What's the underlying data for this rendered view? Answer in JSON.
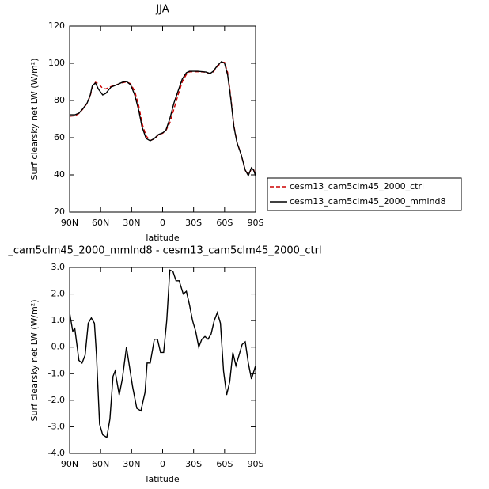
{
  "chart_data": [
    {
      "type": "line",
      "title": "JJA",
      "x_label": "latitude",
      "y_label": "Surf clearsky net LW (W/m²)",
      "x": [
        90,
        85,
        81,
        77,
        73,
        70,
        68,
        65,
        62,
        58,
        55,
        50,
        44,
        39,
        35,
        31,
        27,
        23,
        20,
        16,
        12,
        8,
        4,
        0,
        -3,
        -7,
        -11,
        -15,
        -19,
        -23,
        -26,
        -34,
        -42,
        -46,
        -49,
        -53,
        -57,
        -60,
        -63,
        -66,
        -69,
        -72,
        -76,
        -80,
        -83,
        -86,
        -88,
        -90
      ],
      "series": [
        {
          "name": "cesm13_cam5clm45_2000_ctrl",
          "color": "#cc0000",
          "dash": true,
          "values": [
            71.5,
            71.8,
            73,
            75.5,
            78.5,
            82.5,
            87.5,
            89.8,
            89,
            86.5,
            86.2,
            87.5,
            88.6,
            89.5,
            90,
            89,
            85,
            77,
            68,
            61,
            58.5,
            59.3,
            61.5,
            62.4,
            63.6,
            68,
            75.5,
            83,
            90,
            94,
            95.4,
            95.5,
            95.2,
            94.3,
            95.3,
            98.2,
            100.6,
            100.5,
            95,
            82,
            66.6,
            57.6,
            51,
            42.4,
            40.2,
            43,
            43,
            40
          ]
        },
        {
          "name": "cesm13_cam5clm45_2000_mmlnd8",
          "color": "#000000",
          "dash": false,
          "values": [
            72.3,
            72.3,
            73.2,
            75.7,
            78.7,
            83,
            88,
            89.4,
            86,
            83,
            83.8,
            87.2,
            88.5,
            89.8,
            90.2,
            88.5,
            83,
            74.5,
            66,
            59.6,
            58.3,
            59.6,
            61.7,
            62.6,
            63.8,
            70.2,
            78.7,
            85.1,
            91.5,
            94.9,
            95.7,
            95.7,
            95.3,
            94.5,
            95.7,
            98.7,
            100.9,
            100,
            93.6,
            80.9,
            66,
            57.4,
            51,
            42.6,
            39.6,
            43.8,
            42.6,
            39.6
          ]
        }
      ],
      "xlim": [
        90,
        -90
      ],
      "xticks": [
        {
          "value": 90,
          "label": "90N"
        },
        {
          "value": 60,
          "label": "60N"
        },
        {
          "value": 30,
          "label": "30N"
        },
        0,
        {
          "value": -30,
          "label": "30S"
        },
        {
          "value": -60,
          "label": "60S"
        },
        {
          "value": -90,
          "label": "90S"
        }
      ],
      "ylim": [
        20,
        120
      ],
      "yticks": [
        20,
        40,
        60,
        80,
        100,
        120
      ]
    },
    {
      "type": "line",
      "title": "_cam5clm45_2000_mmlnd8 - cesm13_cam5clm45_2000_ctrl",
      "x_label": "latitude",
      "y_label": "Surf clearsky net LW (W/m²)",
      "x": [
        90,
        87,
        85,
        81,
        78,
        75,
        72,
        69,
        66,
        64,
        61,
        58,
        54,
        51,
        48,
        46,
        42,
        39,
        35,
        33,
        29,
        25,
        21,
        17,
        15,
        12,
        8,
        5,
        2,
        -1,
        -4,
        -7,
        -10,
        -13,
        -16,
        -20,
        -23,
        -26,
        -29,
        -32,
        -35,
        -38,
        -41,
        -44,
        -47,
        -50,
        -53,
        -56,
        -59,
        -62,
        -65,
        -68,
        -71,
        -74,
        -77,
        -80,
        -83,
        -86,
        -90
      ],
      "series": [
        {
          "color": "#000000",
          "dash": false,
          "values": [
            1.3,
            0.6,
            0.7,
            -0.5,
            -0.6,
            -0.3,
            0.9,
            1.1,
            0.9,
            -0.3,
            -2.9,
            -3.3,
            -3.4,
            -2.7,
            -1.1,
            -0.9,
            -1.8,
            -1.2,
            0.0,
            -0.5,
            -1.5,
            -2.3,
            -2.4,
            -1.7,
            -0.6,
            -0.6,
            0.3,
            0.3,
            -0.2,
            -0.2,
            1.0,
            2.9,
            2.85,
            2.5,
            2.5,
            2.0,
            2.1,
            1.6,
            1.0,
            0.6,
            0.0,
            0.3,
            0.4,
            0.3,
            0.5,
            1.0,
            1.3,
            0.9,
            -0.9,
            -1.8,
            -1.3,
            -0.2,
            -0.7,
            -0.3,
            0.1,
            0.2,
            -0.6,
            -1.2,
            -0.7
          ]
        }
      ],
      "xlim": [
        90,
        -90
      ],
      "xticks": [
        {
          "value": 90,
          "label": "90N"
        },
        {
          "value": 60,
          "label": "60N"
        },
        {
          "value": 30,
          "label": "30N"
        },
        0,
        {
          "value": -30,
          "label": "30S"
        },
        {
          "value": -60,
          "label": "60S"
        },
        {
          "value": -90,
          "label": "90S"
        }
      ],
      "ylim": [
        -4,
        3
      ],
      "yticks": [
        {
          "value": -4,
          "label": "-4.0"
        },
        {
          "value": -3,
          "label": "-3.0"
        },
        {
          "value": -2,
          "label": "-2.0"
        },
        {
          "value": -1,
          "label": "-1.0"
        },
        {
          "value": 0,
          "label": "0.0"
        },
        {
          "value": 1,
          "label": "1.0"
        },
        {
          "value": 2,
          "label": "2.0"
        },
        {
          "value": 3,
          "label": "3.0"
        }
      ]
    }
  ]
}
